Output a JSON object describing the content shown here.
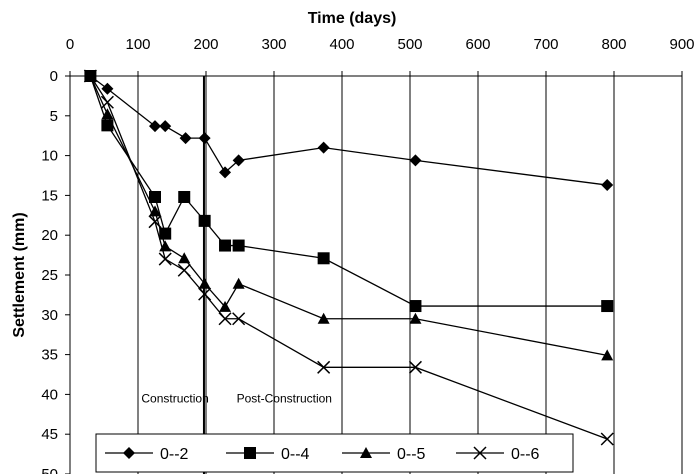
{
  "chart_data": {
    "type": "line",
    "title": "",
    "xlabel": "Time (days)",
    "ylabel": "Settlement (mm)",
    "xlim": [
      0,
      900
    ],
    "ylim": [
      0,
      50
    ],
    "y_inverted": true,
    "x_axis_position": "top",
    "x_ticks": [
      0,
      100,
      200,
      300,
      400,
      500,
      600,
      700,
      800,
      900
    ],
    "y_ticks": [
      0,
      5,
      10,
      15,
      20,
      25,
      30,
      35,
      40,
      45,
      50
    ],
    "grid": "vertical",
    "legend_position": "bottom",
    "vline": {
      "x": 197
    },
    "annotations": [
      {
        "text": "Construction",
        "x": 105,
        "y": 40.5
      },
      {
        "text": "Post-Construction",
        "x": 245,
        "y": 40.5
      }
    ],
    "series": [
      {
        "name": "0--2",
        "marker": "diamond",
        "x": [
          30,
          55,
          125,
          140,
          170,
          198,
          228,
          248,
          373,
          508,
          790
        ],
        "y": [
          0,
          1.6,
          6.3,
          6.3,
          7.8,
          7.8,
          12.1,
          10.6,
          9.0,
          10.6,
          13.7
        ]
      },
      {
        "name": "0--4",
        "marker": "square",
        "x": [
          30,
          55,
          125,
          140,
          168,
          198,
          228,
          248,
          373,
          508,
          790
        ],
        "y": [
          0,
          6.2,
          15.2,
          19.8,
          15.2,
          18.2,
          21.3,
          21.3,
          22.9,
          28.9,
          28.9
        ]
      },
      {
        "name": "0--5",
        "marker": "triangle",
        "x": [
          30,
          55,
          125,
          140,
          168,
          198,
          228,
          248,
          373,
          508,
          790
        ],
        "y": [
          0,
          4.8,
          17.0,
          21.4,
          22.9,
          26.1,
          29.0,
          26.1,
          30.5,
          30.5,
          35.1
        ]
      },
      {
        "name": "0--6",
        "marker": "x",
        "x": [
          30,
          55,
          125,
          140,
          168,
          198,
          228,
          248,
          373,
          508,
          790
        ],
        "y": [
          0,
          3.3,
          18.3,
          23.0,
          24.4,
          27.4,
          30.5,
          30.5,
          36.6,
          36.6,
          45.6
        ]
      }
    ]
  }
}
